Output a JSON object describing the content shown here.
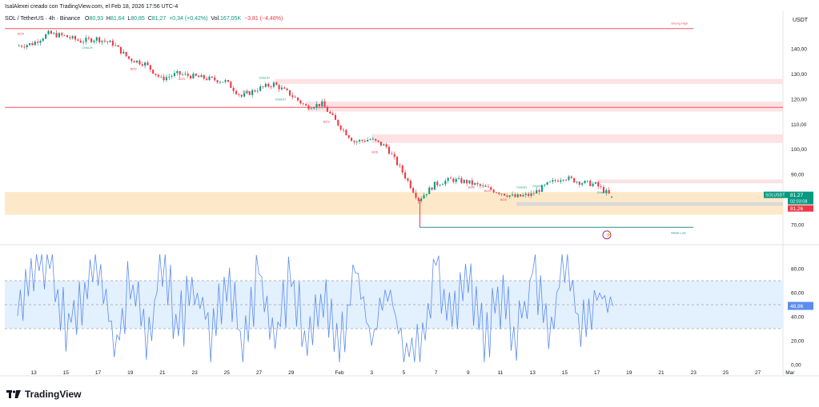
{
  "header": {
    "published": "IsalAlexei creado con TradingView.com, el Feb 18, 2026 17:56 UTC-4"
  },
  "symbol_bar": {
    "symbol": "SOL / TetherUS · 4h · Binance",
    "o_label": "O",
    "o": "80,93",
    "h_label": "H",
    "h": "81,64",
    "l_label": "L",
    "l": "80,85",
    "c_label": "C",
    "c": "81,27",
    "change": "+0,34 (+0,42%)",
    "vol_label": "Vol.",
    "vol": "167,05K",
    "vol_change": "−3,81 (−4,48%)"
  },
  "footer": {
    "brand": "TradingView"
  },
  "colors": {
    "up": "#089981",
    "down": "#f23645",
    "rsi_line": "#5b8def",
    "rsi_band": "#e3f0fd",
    "supply_zone": "#fde2e4",
    "demand_zone": "#fde9c9",
    "strong_high_line": "#f7525f",
    "weak_low_line": "#2e8b8b",
    "price_label": "#089981"
  },
  "chart_data": [
    {
      "type": "candlestick",
      "title": "",
      "currency": "USDT",
      "ylim": [
        64,
        153
      ],
      "y_ticks": [
        "70,00",
        "80,00",
        "90,00",
        "100,00",
        "110,00",
        "120,00",
        "130,00",
        "140,00"
      ],
      "x_ticks": [
        "13",
        "15",
        "17",
        "19",
        "21",
        "23",
        "25",
        "27",
        "29",
        "Feb",
        "3",
        "5",
        "7",
        "9",
        "11",
        "13",
        "15",
        "17",
        "19",
        "21",
        "23",
        "25",
        "27",
        "Mar"
      ],
      "x_tick_dates": [
        "2026-01-13",
        "2026-01-15",
        "2026-01-17",
        "2026-01-19",
        "2026-01-21",
        "2026-01-23",
        "2026-01-25",
        "2026-01-27",
        "2026-01-29",
        "2026-02-01",
        "2026-02-03",
        "2026-02-05",
        "2026-02-07",
        "2026-02-09",
        "2026-02-11",
        "2026-02-13",
        "2026-02-15",
        "2026-02-17",
        "2026-02-19",
        "2026-02-21",
        "2026-02-23",
        "2026-02-25",
        "2026-02-27",
        "2026-03-01"
      ],
      "close_path": [
        [
          "2026-01-12",
          141
        ],
        [
          "2026-01-13",
          142
        ],
        [
          "2026-01-14",
          146
        ],
        [
          "2026-01-15",
          145
        ],
        [
          "2026-01-16",
          143
        ],
        [
          "2026-01-17",
          144
        ],
        [
          "2026-01-18",
          142
        ],
        [
          "2026-01-19",
          136
        ],
        [
          "2026-01-20",
          134
        ],
        [
          "2026-01-21",
          128
        ],
        [
          "2026-01-22",
          130
        ],
        [
          "2026-01-23",
          129
        ],
        [
          "2026-01-24",
          128
        ],
        [
          "2026-01-25",
          127
        ],
        [
          "2026-01-26",
          121
        ],
        [
          "2026-01-27",
          124
        ],
        [
          "2026-01-28",
          126
        ],
        [
          "2026-01-29",
          122
        ],
        [
          "2026-01-30",
          117
        ],
        [
          "2026-01-31",
          118
        ],
        [
          "2026-02-01",
          110
        ],
        [
          "2026-02-02",
          103
        ],
        [
          "2026-02-03",
          104
        ],
        [
          "2026-02-04",
          101
        ],
        [
          "2026-02-05",
          91
        ],
        [
          "2026-02-06",
          80
        ],
        [
          "2026-02-07",
          86
        ],
        [
          "2026-02-08",
          88
        ],
        [
          "2026-02-09",
          87
        ],
        [
          "2026-02-10",
          85
        ],
        [
          "2026-02-11",
          83
        ],
        [
          "2026-02-12",
          81
        ],
        [
          "2026-02-13",
          82
        ],
        [
          "2026-02-14",
          86
        ],
        [
          "2026-02-15",
          89
        ],
        [
          "2026-02-16",
          87
        ],
        [
          "2026-02-17",
          86
        ],
        [
          "2026-02-18",
          81.27
        ]
      ],
      "ohlc_last": {
        "open": 80.93,
        "high": 81.64,
        "low": 80.85,
        "close": 81.27
      },
      "price_label": {
        "symbol": "SOLUSDT",
        "price": "81,27",
        "countdown": "02:03:08"
      },
      "level_label": "81,26",
      "zones": [
        {
          "kind": "supply",
          "top": 128,
          "bottom": 126
        },
        {
          "kind": "supply",
          "top": 119,
          "bottom": 115
        },
        {
          "kind": "supply",
          "top": 106,
          "bottom": 102.5
        },
        {
          "kind": "supply",
          "top": 88,
          "bottom": 86.5
        },
        {
          "kind": "demand",
          "top": 83,
          "bottom": 74
        },
        {
          "kind": "equilibrium",
          "top": 79,
          "bottom": 77.5
        }
      ],
      "lines": [
        {
          "kind": "strong_high",
          "value": 148,
          "from": "2026-01-13",
          "to": "2026-02-22",
          "label": "Strong High"
        },
        {
          "kind": "weak_low",
          "value": 69,
          "from": "2026-02-06",
          "to": "2026-02-22",
          "label": "Weak Low"
        }
      ],
      "annotations": [
        {
          "text": "BOS",
          "date": "2026-01-12",
          "value": 145.5
        },
        {
          "text": "CHoCH",
          "date": "2026-01-16",
          "value": 140
        },
        {
          "text": "BOS",
          "date": "2026-01-19",
          "value": 131.5
        },
        {
          "text": "BOS",
          "date": "2026-01-22",
          "value": 127.5
        },
        {
          "text": "BOS",
          "date": "2026-01-26",
          "value": 122.5
        },
        {
          "text": "CHoCH",
          "date": "2026-01-27",
          "value": 128
        },
        {
          "text": "CHoCH",
          "date": "2026-01-28",
          "value": 119.5
        },
        {
          "text": "BOS",
          "date": "2026-01-31",
          "value": 110.5
        },
        {
          "text": "BOS",
          "date": "2026-02-03",
          "value": 98.5
        },
        {
          "text": "BOS",
          "date": "2026-02-09",
          "value": 84.5
        },
        {
          "text": "BOS",
          "date": "2026-02-10",
          "value": 83
        },
        {
          "text": "BOS",
          "date": "2026-02-11",
          "value": 79.5
        },
        {
          "text": "CHoCH",
          "date": "2026-02-12",
          "value": 84.5
        },
        {
          "text": "CHoCH",
          "date": "2026-02-13",
          "value": 85
        },
        {
          "text": "CHoCH",
          "date": "2026-02-17",
          "value": 82.5
        }
      ]
    },
    {
      "type": "line",
      "title": "",
      "ylim": [
        -4,
        96
      ],
      "y_ticks": [
        "0,00",
        "20,00",
        "40,00",
        "60,00",
        "80,00"
      ],
      "bands": {
        "upper": 70,
        "middle": 50,
        "lower": 30
      },
      "last_value_label": "48,96",
      "series": [
        {
          "values": [
            [
              "2026-01-12",
              50
            ],
            [
              "2026-01-13",
              88
            ],
            [
              "2026-01-14",
              90
            ],
            [
              "2026-01-15",
              35
            ],
            [
              "2026-01-16",
              55
            ],
            [
              "2026-01-17",
              80
            ],
            [
              "2026-01-18",
              15
            ],
            [
              "2026-01-19",
              70
            ],
            [
              "2026-01-20",
              20
            ],
            [
              "2026-01-21",
              84
            ],
            [
              "2026-01-22",
              30
            ],
            [
              "2026-01-23",
              65
            ],
            [
              "2026-01-24",
              25
            ],
            [
              "2026-01-25",
              75
            ],
            [
              "2026-01-26",
              10
            ],
            [
              "2026-01-27",
              80
            ],
            [
              "2026-01-28",
              22
            ],
            [
              "2026-01-29",
              72
            ],
            [
              "2026-01-30",
              15
            ],
            [
              "2026-01-31",
              60
            ],
            [
              "2026-02-01",
              12
            ],
            [
              "2026-02-02",
              85
            ],
            [
              "2026-02-03",
              18
            ],
            [
              "2026-02-04",
              70
            ],
            [
              "2026-02-05",
              5
            ],
            [
              "2026-02-06",
              10
            ],
            [
              "2026-02-07",
              88
            ],
            [
              "2026-02-08",
              35
            ],
            [
              "2026-02-09",
              74
            ],
            [
              "2026-02-10",
              20
            ],
            [
              "2026-02-11",
              55
            ],
            [
              "2026-02-12",
              20
            ],
            [
              "2026-02-13",
              78
            ],
            [
              "2026-02-14",
              30
            ],
            [
              "2026-02-15",
              85
            ],
            [
              "2026-02-16",
              25
            ],
            [
              "2026-02-17",
              60
            ],
            [
              "2026-02-18",
              48.96
            ]
          ]
        }
      ]
    }
  ]
}
